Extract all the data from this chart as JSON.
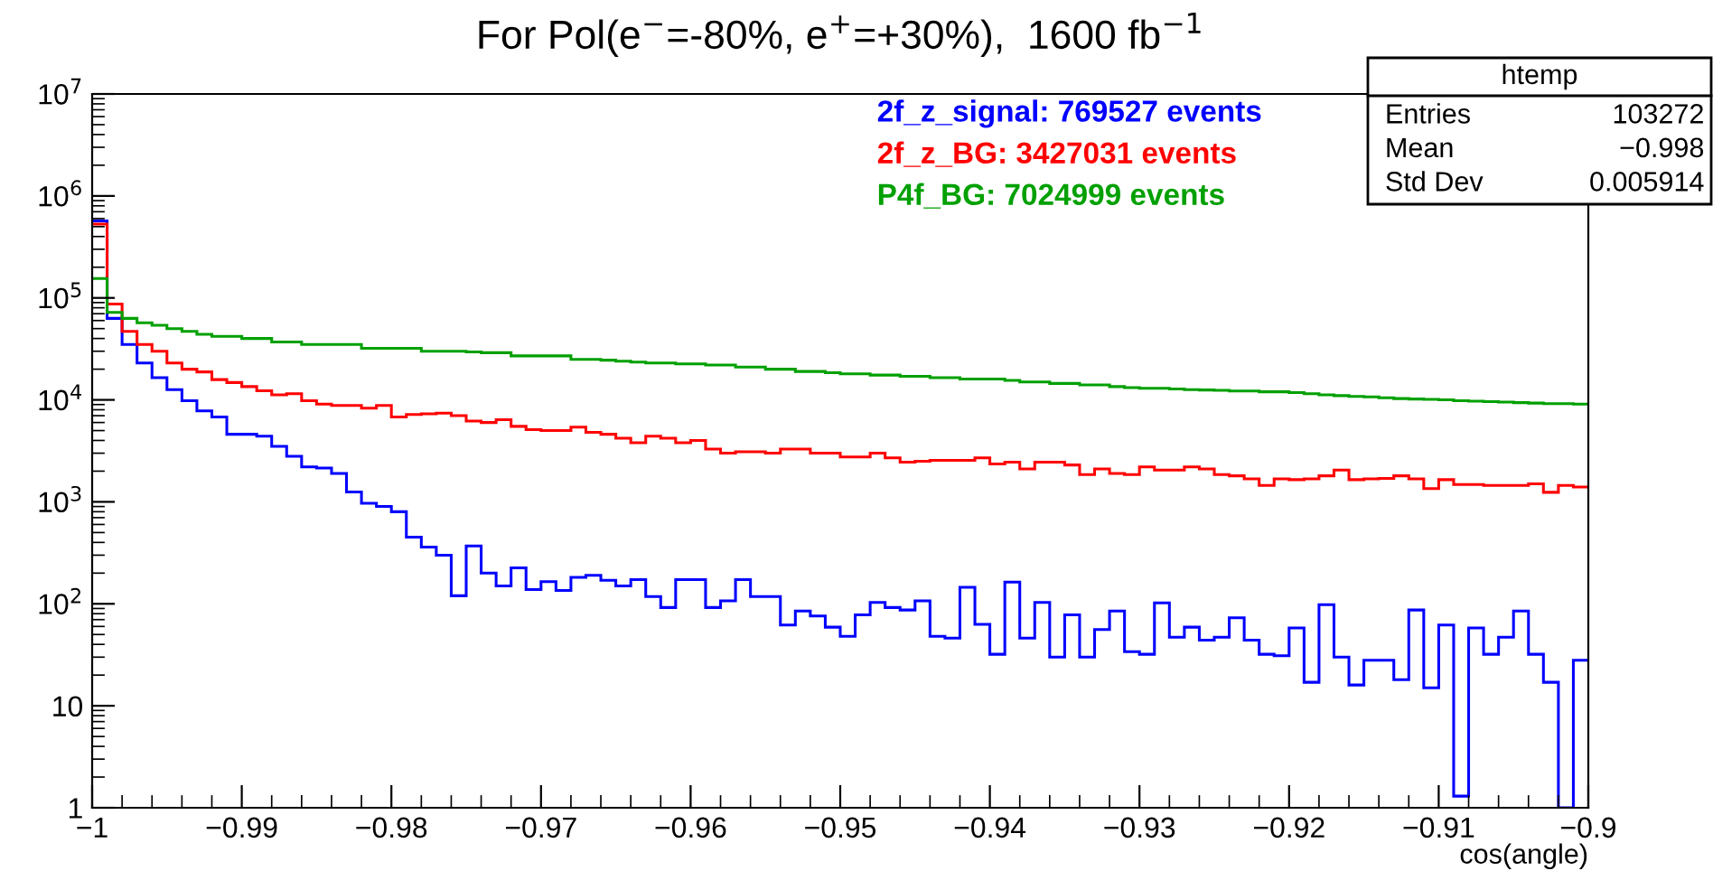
{
  "chart_data": {
    "type": "histogram",
    "title": "For Pol(e$^{−}$=-80%, e$^{+}$=+30%),  1600 fb$^{−1}$",
    "xlabel": "cos(angle)",
    "bins": [
      -1,
      -0.999,
      -0.998,
      -0.997,
      -0.996,
      -0.995,
      -0.994,
      -0.993,
      -0.992,
      -0.991,
      -0.99,
      -0.989,
      -0.988,
      -0.987,
      -0.986,
      -0.985,
      -0.984,
      -0.983,
      -0.982,
      -0.981,
      -0.98,
      -0.979,
      -0.978,
      -0.977,
      -0.976,
      -0.975,
      -0.974,
      -0.973,
      -0.972,
      -0.971,
      -0.97,
      -0.969,
      -0.968,
      -0.967,
      -0.966,
      -0.965,
      -0.964,
      -0.963,
      -0.962,
      -0.961,
      -0.96,
      -0.959,
      -0.958,
      -0.957,
      -0.956,
      -0.955,
      -0.954,
      -0.953,
      -0.952,
      -0.951,
      -0.95,
      -0.949,
      -0.948,
      -0.947,
      -0.946,
      -0.945,
      -0.944,
      -0.943,
      -0.942,
      -0.941,
      -0.94,
      -0.939,
      -0.938,
      -0.937,
      -0.936,
      -0.935,
      -0.934,
      -0.933,
      -0.932,
      -0.931,
      -0.93,
      -0.929,
      -0.928,
      -0.927,
      -0.926,
      -0.925,
      -0.924,
      -0.923,
      -0.922,
      -0.921,
      -0.92,
      -0.919,
      -0.918,
      -0.917,
      -0.916,
      -0.915,
      -0.914,
      -0.913,
      -0.912,
      -0.911,
      -0.91,
      -0.909,
      -0.908,
      -0.907,
      -0.906,
      -0.905,
      -0.904,
      -0.903,
      -0.902,
      -0.901,
      -0.9
    ],
    "series": [
      {
        "name": "2f_z_signal: 769527 events",
        "color": "#0000ff",
        "values": [
          570000,
          63000,
          35000,
          23000,
          16500,
          12600,
          9800,
          7800,
          6800,
          4600,
          4600,
          4400,
          3500,
          2800,
          2200,
          2150,
          1900,
          1250,
          970,
          900,
          800,
          450,
          360,
          300,
          120,
          370,
          200,
          150,
          225,
          138,
          165,
          135,
          182,
          190,
          170,
          150,
          173,
          118,
          92,
          173,
          173,
          92,
          107,
          173,
          118,
          118,
          62,
          85,
          76,
          59,
          48,
          78,
          103,
          92,
          87,
          107,
          48,
          46,
          145,
          63,
          32,
          163,
          46,
          103,
          30,
          78,
          30,
          56,
          85,
          34,
          32,
          102,
          47,
          59,
          44,
          47,
          73,
          44,
          32,
          31,
          58,
          17,
          98,
          30,
          16,
          28,
          28,
          18,
          87,
          15,
          62,
          1.3,
          58,
          32,
          47,
          85,
          32,
          17,
          1,
          28
        ]
      },
      {
        "name": "2f_z_BG: 3427031 events",
        "color": "#ff0000",
        "values": [
          530000,
          87000,
          47000,
          35000,
          30000,
          23000,
          20000,
          18800,
          15800,
          14800,
          13500,
          12300,
          11200,
          11500,
          9800,
          9100,
          8800,
          8800,
          8300,
          8800,
          6800,
          7200,
          7300,
          7400,
          7000,
          6200,
          6000,
          6400,
          5500,
          5100,
          5000,
          5000,
          5400,
          4800,
          4600,
          4200,
          3800,
          4400,
          4200,
          3800,
          4000,
          3300,
          3000,
          3100,
          3100,
          3000,
          3300,
          3300,
          3000,
          3000,
          2750,
          2750,
          3000,
          2700,
          2450,
          2500,
          2550,
          2550,
          2550,
          2700,
          2350,
          2450,
          2100,
          2450,
          2450,
          2300,
          1850,
          2100,
          1900,
          1850,
          2200,
          2050,
          2050,
          2200,
          2100,
          1850,
          1800,
          1680,
          1450,
          1680,
          1650,
          1680,
          1800,
          2050,
          1650,
          1680,
          1700,
          1800,
          1680,
          1350,
          1650,
          1480,
          1480,
          1450,
          1450,
          1450,
          1500,
          1240,
          1450,
          1400
        ]
      },
      {
        "name": "P4f_BG: 7024999 events",
        "color": "#00a000",
        "values": [
          155000,
          72000,
          63000,
          57000,
          54000,
          50000,
          47000,
          44000,
          42000,
          42000,
          40000,
          40000,
          37000,
          37000,
          35000,
          35000,
          35000,
          35000,
          32000,
          32000,
          32000,
          32000,
          30000,
          30000,
          30000,
          29500,
          29000,
          29000,
          27000,
          27000,
          27000,
          27000,
          25000,
          25000,
          24500,
          24000,
          23500,
          23000,
          23000,
          22500,
          22500,
          22000,
          22000,
          21000,
          21000,
          20000,
          20000,
          19000,
          19000,
          18500,
          18000,
          18000,
          17500,
          17500,
          17000,
          17000,
          16500,
          16500,
          16000,
          16000,
          16000,
          15500,
          15000,
          15000,
          14500,
          14500,
          14000,
          14000,
          13500,
          13200,
          13000,
          13000,
          12800,
          12600,
          12500,
          12400,
          12200,
          12200,
          12000,
          12000,
          11800,
          11500,
          11200,
          11000,
          10800,
          10700,
          10500,
          10300,
          10200,
          10100,
          10000,
          9800,
          9700,
          9600,
          9500,
          9400,
          9300,
          9200,
          9200,
          9100
        ]
      }
    ],
    "log": "y",
    "xlim": [
      -1,
      -0.9
    ],
    "xticks": [
      {
        "value": -1,
        "label": "−1"
      },
      {
        "value": -0.99,
        "label": "−0.99"
      },
      {
        "value": -0.98,
        "label": "−0.98"
      },
      {
        "value": -0.97,
        "label": "−0.97"
      },
      {
        "value": -0.96,
        "label": "−0.96"
      },
      {
        "value": -0.95,
        "label": "−0.95"
      },
      {
        "value": -0.94,
        "label": "−0.94"
      },
      {
        "value": -0.93,
        "label": "−0.93"
      },
      {
        "value": -0.92,
        "label": "−0.92"
      },
      {
        "value": -0.91,
        "label": "−0.91"
      },
      {
        "value": -0.9,
        "label": "−0.9"
      }
    ],
    "ylim": [
      1,
      10000000
    ],
    "yticks": [
      1,
      10,
      {
        "value": 100,
        "label": "10$^{2}$"
      },
      {
        "value": 1000,
        "label": "10$^{3}$"
      },
      {
        "value": 10000,
        "label": "10$^{4}$"
      },
      {
        "value": 100000,
        "label": "10$^{5}$"
      },
      {
        "value": 1000000,
        "label": "10$^{6}$"
      },
      {
        "value": 10000000,
        "label": "10$^{7}$"
      }
    ],
    "grid": false,
    "legend": "top right",
    "annotations": [
      "htemp",
      "Entries",
      "103272",
      "Mean",
      "−0.998",
      "Std Dev",
      "0.005914"
    ]
  }
}
